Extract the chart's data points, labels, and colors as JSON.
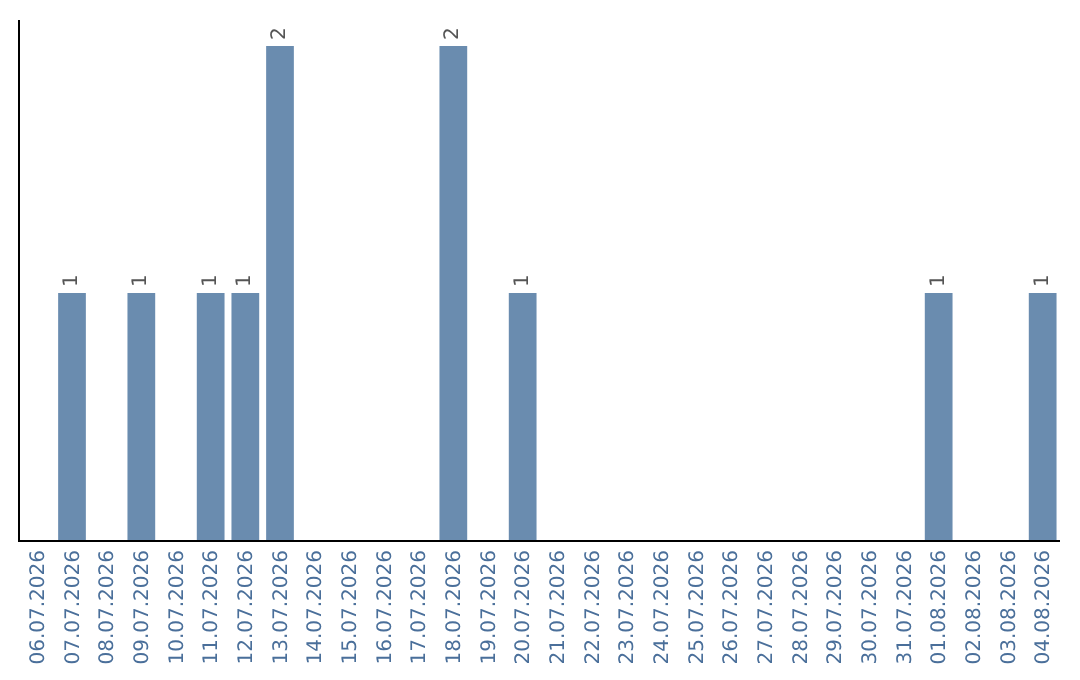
{
  "chart_data": {
    "type": "bar",
    "categories": [
      "06.07.2026",
      "07.07.2026",
      "08.07.2026",
      "09.07.2026",
      "10.07.2026",
      "11.07.2026",
      "12.07.2026",
      "13.07.2026",
      "14.07.2026",
      "15.07.2026",
      "16.07.2026",
      "17.07.2026",
      "18.07.2026",
      "19.07.2026",
      "20.07.2026",
      "21.07.2026",
      "22.07.2026",
      "23.07.2026",
      "24.07.2026",
      "25.07.2026",
      "26.07.2026",
      "27.07.2026",
      "28.07.2026",
      "29.07.2026",
      "30.07.2026",
      "31.07.2026",
      "01.08.2026",
      "02.08.2026",
      "03.08.2026",
      "04.08.2026"
    ],
    "values": [
      0,
      1,
      0,
      1,
      0,
      1,
      1,
      2,
      0,
      0,
      0,
      0,
      2,
      0,
      1,
      0,
      0,
      0,
      0,
      0,
      0,
      0,
      0,
      0,
      0,
      0,
      1,
      0,
      0,
      1
    ],
    "value_labels": [
      null,
      "1",
      null,
      "1",
      null,
      "1",
      "1",
      "2",
      null,
      null,
      null,
      null,
      "2",
      null,
      "1",
      null,
      null,
      null,
      null,
      null,
      null,
      null,
      null,
      null,
      null,
      null,
      "1",
      null,
      null,
      "1"
    ],
    "color": "#6a8caf",
    "grid": false,
    "legend": false,
    "tick_labels": "x"
  }
}
